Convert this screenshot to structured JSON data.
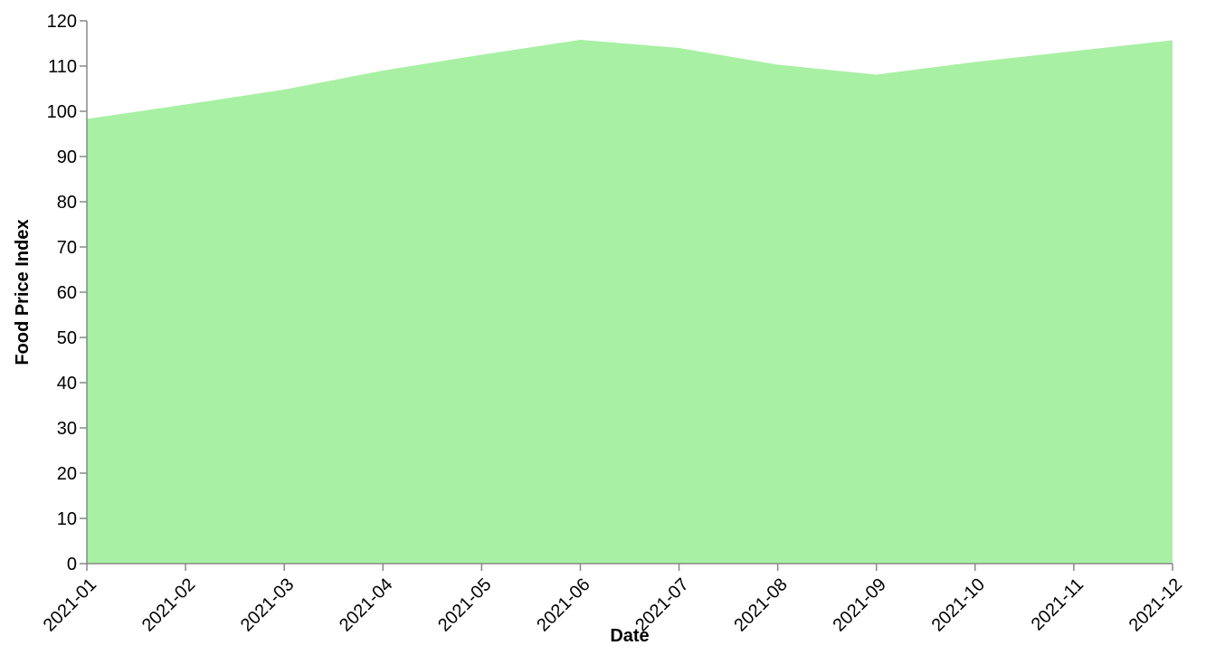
{
  "chart_data": {
    "type": "area",
    "x": [
      "2021-01",
      "2021-02",
      "2021-03",
      "2021-04",
      "2021-05",
      "2021-06",
      "2021-07",
      "2021-08",
      "2021-09",
      "2021-10",
      "2021-11",
      "2021-12"
    ],
    "values": [
      98.3,
      101.5,
      104.8,
      109.0,
      112.5,
      115.8,
      114.0,
      110.3,
      108.1,
      110.9,
      113.3,
      115.7
    ],
    "xlabel": "Date",
    "ylabel": "Food Price Index",
    "ylim": [
      0,
      120
    ],
    "yticks": [
      "0",
      "10",
      "20",
      "30",
      "40",
      "50",
      "60",
      "70",
      "80",
      "90",
      "100",
      "110",
      "120"
    ],
    "grid": false,
    "legend": "none",
    "colors": {
      "area": "#a8f0a4",
      "axis": "#888888"
    }
  }
}
